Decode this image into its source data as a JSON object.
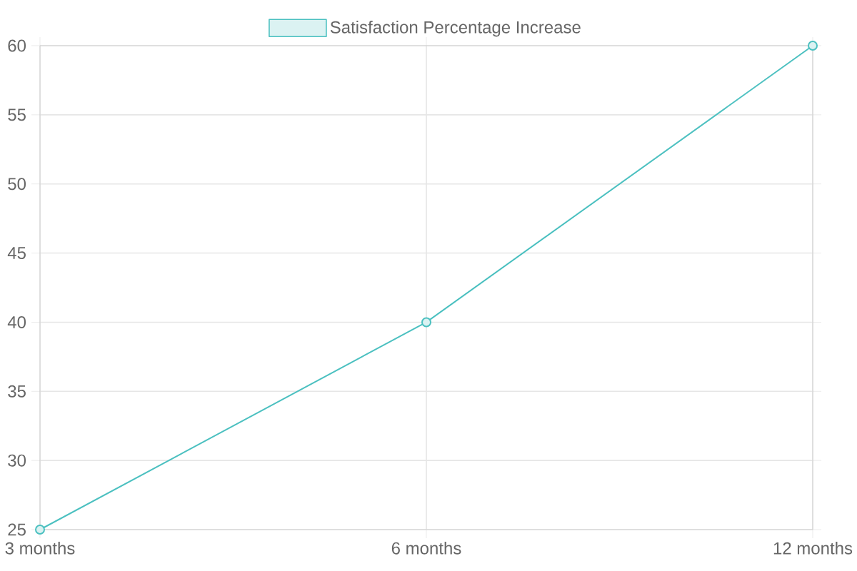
{
  "chart_data": {
    "type": "line",
    "categories": [
      "3 months",
      "6 months",
      "12 months"
    ],
    "series": [
      {
        "name": "Satisfaction Percentage Increase",
        "color": "#4bc0c0",
        "values": [
          25,
          40,
          60
        ]
      }
    ],
    "ylim": [
      25,
      60
    ],
    "yticks": [
      25,
      30,
      35,
      40,
      45,
      50,
      55,
      60
    ],
    "grid": true,
    "legend": "top",
    "marker": "circle",
    "line_style": "solid"
  }
}
